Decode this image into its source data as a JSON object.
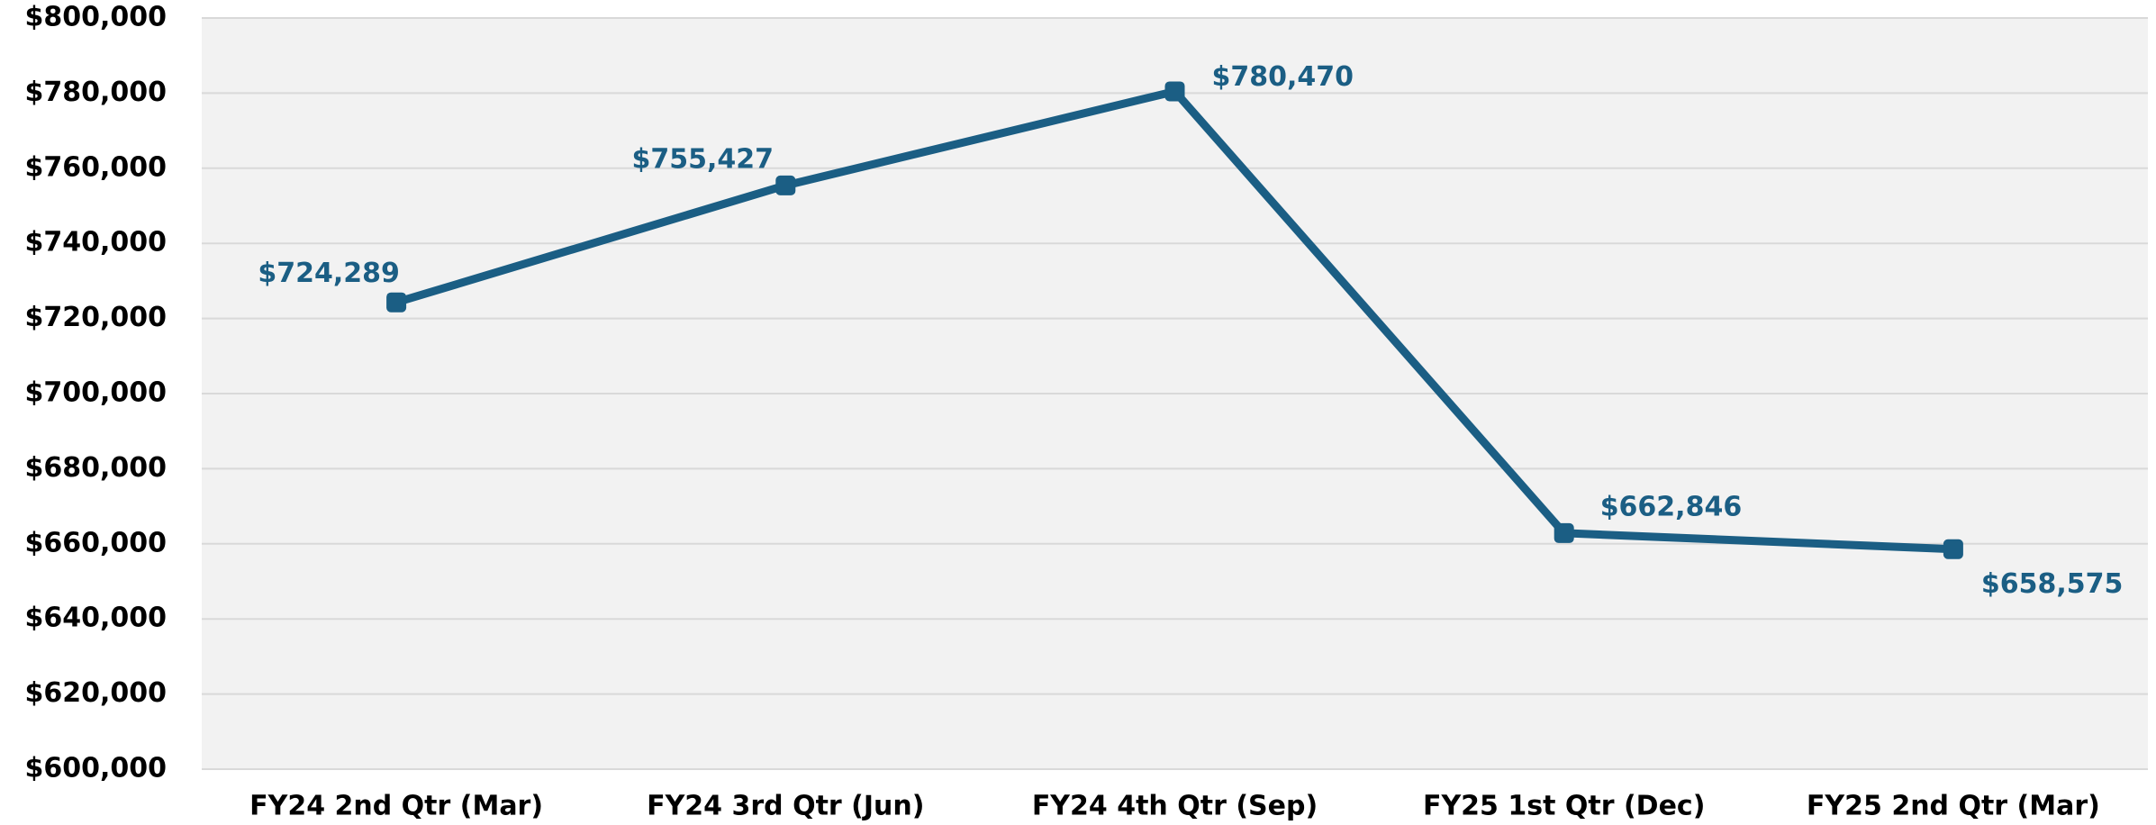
{
  "chart_data": {
    "type": "line",
    "categories": [
      "FY24 2nd Qtr (Mar)",
      "FY24 3rd Qtr (Jun)",
      "FY24 4th Qtr (Sep)",
      "FY25 1st Qtr (Dec)",
      "FY25 2nd Qtr (Mar)"
    ],
    "series": [
      {
        "color": "#1b5e84",
        "values": [
          724289,
          755427,
          780470,
          662846,
          658575
        ],
        "value_labels": [
          "$724,289",
          "$755,427",
          "$780,470",
          "$662,846",
          "$658,575"
        ]
      }
    ],
    "ylim": [
      600000,
      800000
    ],
    "yticks": [
      {
        "value": 600000,
        "label": "$600,000"
      },
      {
        "value": 620000,
        "label": "$620,000"
      },
      {
        "value": 640000,
        "label": "$640,000"
      },
      {
        "value": 660000,
        "label": "$660,000"
      },
      {
        "value": 680000,
        "label": "$680,000"
      },
      {
        "value": 700000,
        "label": "$700,000"
      },
      {
        "value": 720000,
        "label": "$720,000"
      },
      {
        "value": 740000,
        "label": "$740,000"
      },
      {
        "value": 760000,
        "label": "$760,000"
      },
      {
        "value": 780000,
        "label": "$780,000"
      },
      {
        "value": 800000,
        "label": "$800,000"
      }
    ],
    "grid": true
  }
}
